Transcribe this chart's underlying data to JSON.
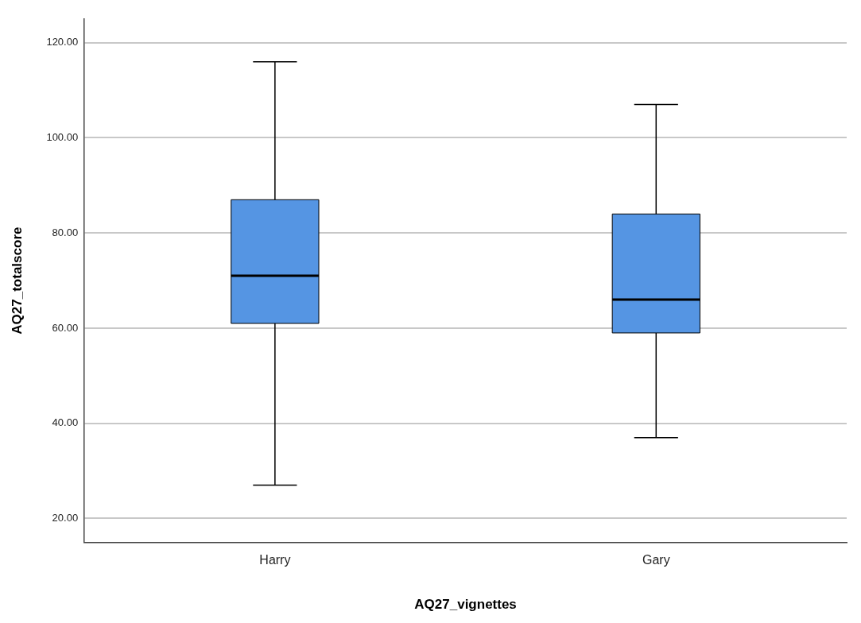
{
  "chart_data": {
    "type": "box",
    "xlabel": "AQ27_vignettes",
    "ylabel": "AQ27_totalscore",
    "categories": [
      "Harry",
      "Gary"
    ],
    "color": "#5595e3",
    "boxes": [
      {
        "low": 27,
        "q1": 61,
        "median": 71,
        "q3": 87,
        "high": 116
      },
      {
        "low": 37,
        "q1": 59,
        "median": 66,
        "q3": 84,
        "high": 107
      }
    ],
    "ylim": [
      15,
      125
    ],
    "yticks": [
      {
        "value": 20,
        "label": "20.00"
      },
      {
        "value": 40,
        "label": "40.00"
      },
      {
        "value": 60,
        "label": "60.00"
      },
      {
        "value": 80,
        "label": "80.00"
      },
      {
        "value": 100,
        "label": "100.00"
      },
      {
        "value": 120,
        "label": "120.00"
      }
    ],
    "grid": "y",
    "legend": false
  }
}
